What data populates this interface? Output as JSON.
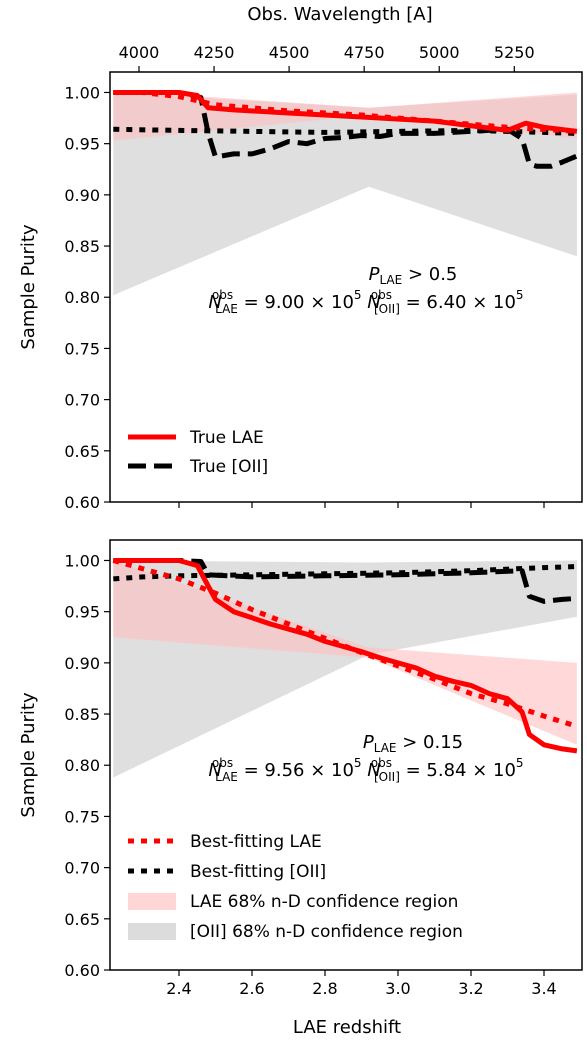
{
  "chart_data": [
    {
      "type": "line",
      "panel": "top",
      "ylabel": "Sample Purity",
      "ylim": [
        0.6,
        1.02
      ],
      "xlim": [
        2.22,
        3.49
      ],
      "yticks": [
        "0.60",
        "0.65",
        "0.70",
        "0.75",
        "0.80",
        "0.85",
        "0.90",
        "0.95",
        "1.00"
      ],
      "top_axis": {
        "label": "Obs. Wavelength [A]",
        "ticks": [
          "4000",
          "4250",
          "4500",
          "4750",
          "5000",
          "5250"
        ]
      },
      "annotation": {
        "line1": {
          "text": "P",
          "sub": "LAE",
          "rest": " > 0.5"
        },
        "line2": {
          "n_lae_sub": "LAE",
          "n_lae_val": " = 9.00 × 10",
          "n_lae_exp": "5",
          "n_oii_sub": "[OII]",
          "n_oii_val": " = 6.40 × 10",
          "n_oii_exp": "5",
          "sup": "obs",
          "N": "N"
        }
      },
      "legend": [
        "True LAE",
        "True [OII]"
      ],
      "series": [
        {
          "name": "True LAE",
          "style": "solid",
          "color": "#ff0000",
          "x": [
            2.22,
            2.4,
            2.45,
            2.48,
            2.55,
            2.7,
            2.9,
            3.1,
            3.3,
            3.35,
            3.4,
            3.49
          ],
          "y": [
            1.0,
            1.0,
            0.997,
            0.985,
            0.983,
            0.98,
            0.976,
            0.972,
            0.963,
            0.97,
            0.966,
            0.962
          ]
        },
        {
          "name": "True [OII]",
          "style": "dashed",
          "color": "#000000",
          "x": [
            2.22,
            2.3,
            2.4,
            2.46,
            2.48,
            2.5,
            2.55,
            2.6,
            2.65,
            2.7,
            2.75,
            2.8,
            2.85,
            2.9,
            2.95,
            3.0,
            3.05,
            3.1,
            3.2,
            3.3,
            3.34,
            3.36,
            3.38,
            3.42,
            3.45,
            3.49
          ],
          "y": [
            1.0,
            1.0,
            1.0,
            0.995,
            0.96,
            0.937,
            0.94,
            0.94,
            0.945,
            0.952,
            0.95,
            0.955,
            0.956,
            0.958,
            0.957,
            0.96,
            0.96,
            0.96,
            0.962,
            0.964,
            0.955,
            0.93,
            0.928,
            0.928,
            0.932,
            0.938
          ]
        },
        {
          "name": "Best-fitting LAE",
          "style": "dotted",
          "color": "#ff0000",
          "x": [
            2.22,
            2.3,
            2.4,
            2.45,
            2.5,
            2.7,
            2.9,
            3.1,
            3.3,
            3.49
          ],
          "y": [
            1.0,
            1.0,
            0.996,
            0.992,
            0.988,
            0.982,
            0.978,
            0.972,
            0.966,
            0.962
          ]
        },
        {
          "name": "Best-fitting [OII]",
          "style": "dotted",
          "color": "#000000",
          "x": [
            2.22,
            2.4,
            2.6,
            2.8,
            3.0,
            3.2,
            3.4,
            3.49
          ],
          "y": [
            0.964,
            0.963,
            0.962,
            0.961,
            0.962,
            0.963,
            0.961,
            0.96
          ]
        }
      ],
      "bands": [
        {
          "name": "[OII] 68% n-D confidence region",
          "color": "#dddddd",
          "x": [
            2.22,
            2.92,
            3.49
          ],
          "upper": [
            1.0,
            0.985,
            0.998
          ],
          "lower": [
            0.802,
            0.908,
            0.84
          ]
        },
        {
          "name": "LAE 68% n-D confidence region",
          "color": "#ffc0c0",
          "x": [
            2.22,
            2.92,
            3.49
          ],
          "upper": [
            1.002,
            0.985,
            1.0
          ],
          "lower": [
            0.953,
            0.978,
            0.955
          ]
        }
      ]
    },
    {
      "type": "line",
      "panel": "bottom",
      "xlabel": "LAE redshift",
      "ylabel": "Sample Purity",
      "ylim": [
        0.6,
        1.02
      ],
      "xlim": [
        2.22,
        3.49
      ],
      "yticks": [
        "0.60",
        "0.65",
        "0.70",
        "0.75",
        "0.80",
        "0.85",
        "0.90",
        "0.95",
        "1.00"
      ],
      "xticks": [
        "2.4",
        "2.6",
        "2.8",
        "3.0",
        "3.2",
        "3.4"
      ],
      "annotation": {
        "line1": {
          "text": "P",
          "sub": "LAE",
          "rest": " > 0.15"
        },
        "line2": {
          "n_lae_sub": "LAE",
          "n_lae_val": " = 9.56 × 10",
          "n_lae_exp": "5",
          "n_oii_sub": "[OII]",
          "n_oii_val": " = 5.84 × 10",
          "n_oii_exp": "5",
          "sup": "obs",
          "N": "N"
        }
      },
      "legend": [
        "Best-fitting LAE",
        "Best-fitting [OII]",
        "LAE 68% n-D confidence region",
        "[OII] 68% n-D confidence region"
      ],
      "series": [
        {
          "name": "True LAE",
          "style": "solid",
          "color": "#ff0000",
          "x": [
            2.22,
            2.3,
            2.4,
            2.45,
            2.48,
            2.5,
            2.55,
            2.6,
            2.65,
            2.7,
            2.75,
            2.8,
            2.85,
            2.9,
            2.95,
            3.0,
            3.05,
            3.1,
            3.15,
            3.2,
            3.25,
            3.3,
            3.34,
            3.36,
            3.4,
            3.45,
            3.49
          ],
          "y": [
            1.0,
            1.0,
            1.0,
            0.995,
            0.975,
            0.962,
            0.95,
            0.944,
            0.938,
            0.933,
            0.928,
            0.921,
            0.916,
            0.911,
            0.905,
            0.9,
            0.895,
            0.887,
            0.882,
            0.878,
            0.87,
            0.865,
            0.852,
            0.83,
            0.82,
            0.816,
            0.814
          ]
        },
        {
          "name": "True [OII]",
          "style": "dashed",
          "color": "#000000",
          "x": [
            2.22,
            2.3,
            2.4,
            2.46,
            2.48,
            2.6,
            2.8,
            3.0,
            3.2,
            3.34,
            3.36,
            3.4,
            3.45,
            3.49
          ],
          "y": [
            1.0,
            1.0,
            1.0,
            0.999,
            0.986,
            0.984,
            0.985,
            0.986,
            0.988,
            0.99,
            0.965,
            0.96,
            0.962,
            0.963
          ]
        },
        {
          "name": "Best-fitting LAE",
          "style": "dotted",
          "color": "#ff0000",
          "x": [
            2.22,
            2.3,
            2.4,
            2.5,
            2.6,
            2.7,
            2.8,
            2.9,
            3.0,
            3.1,
            3.2,
            3.3,
            3.4,
            3.49
          ],
          "y": [
            1.0,
            0.992,
            0.982,
            0.968,
            0.952,
            0.938,
            0.924,
            0.91,
            0.897,
            0.884,
            0.87,
            0.86,
            0.848,
            0.838
          ]
        },
        {
          "name": "Best-fitting [OII]",
          "style": "dotted",
          "color": "#000000",
          "x": [
            2.22,
            2.3,
            2.4,
            2.6,
            2.8,
            3.0,
            3.2,
            3.4,
            3.49
          ],
          "y": [
            0.982,
            0.984,
            0.985,
            0.986,
            0.987,
            0.988,
            0.99,
            0.993,
            0.994
          ]
        }
      ],
      "bands": [
        {
          "name": "[OII] 68% n-D confidence region",
          "color": "#dddddd",
          "x": [
            2.22,
            2.92,
            3.49
          ],
          "upper": [
            1.0,
            0.998,
            1.0
          ],
          "lower": [
            0.788,
            0.908,
            0.945
          ]
        },
        {
          "name": "LAE 68% n-D confidence region",
          "color": "#ffc0c0",
          "x": [
            2.22,
            2.92,
            3.49
          ],
          "upper": [
            1.0,
            0.915,
            0.9
          ],
          "lower": [
            0.925,
            0.905,
            0.82
          ]
        }
      ]
    }
  ]
}
